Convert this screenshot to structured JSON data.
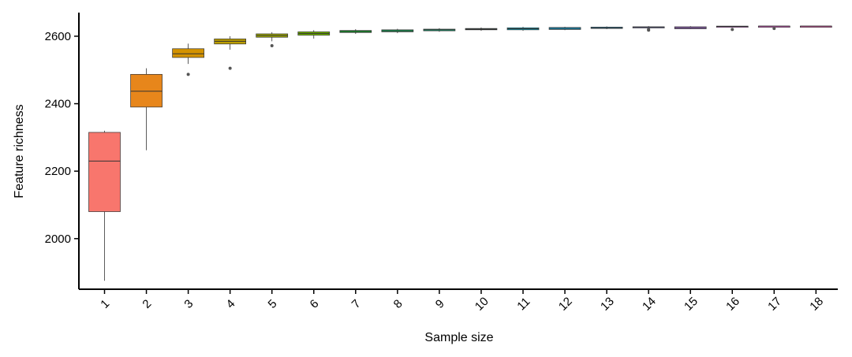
{
  "chart_data": {
    "type": "boxplot",
    "title": "",
    "xlabel": "Sample size",
    "ylabel": "Feature richness",
    "ylim": [
      1850,
      2670
    ],
    "yticks": [
      2000,
      2200,
      2400,
      2600
    ],
    "grid": false,
    "legend": "none",
    "categories": [
      "1",
      "2",
      "3",
      "4",
      "5",
      "6",
      "7",
      "8",
      "9",
      "10",
      "11",
      "12",
      "13",
      "14",
      "15",
      "16",
      "17",
      "18"
    ],
    "boxes": [
      {
        "category": "1",
        "min": 1875,
        "q1": 2080,
        "median": 2230,
        "q3": 2315,
        "max": 2320,
        "outliers": [],
        "color": "#F8766D"
      },
      {
        "category": "2",
        "min": 2262,
        "q1": 2390,
        "median": 2437,
        "q3": 2487,
        "max": 2505,
        "outliers": [],
        "color": "#E7861B"
      },
      {
        "category": "3",
        "min": 2518,
        "q1": 2537,
        "median": 2548,
        "q3": 2563,
        "max": 2578,
        "outliers": [
          2487
        ],
        "color": "#D39200"
      },
      {
        "category": "4",
        "min": 2560,
        "q1": 2577,
        "median": 2585,
        "q3": 2592,
        "max": 2600,
        "outliers": [
          2505
        ],
        "color": "#BB9D00"
      },
      {
        "category": "5",
        "min": 2585,
        "q1": 2597,
        "median": 2602,
        "q3": 2607,
        "max": 2612,
        "outliers": [
          2572
        ],
        "color": "#9DA700"
      },
      {
        "category": "6",
        "min": 2593,
        "q1": 2603,
        "median": 2608,
        "q3": 2613,
        "max": 2618,
        "outliers": [],
        "color": "#6FB000"
      },
      {
        "category": "7",
        "min": 2607,
        "q1": 2611,
        "median": 2614,
        "q3": 2617,
        "max": 2621,
        "outliers": [],
        "color": "#00B81F"
      },
      {
        "category": "8",
        "min": 2609,
        "q1": 2613,
        "median": 2616,
        "q3": 2619,
        "max": 2622,
        "outliers": [],
        "color": "#00BC59"
      },
      {
        "category": "9",
        "min": 2613,
        "q1": 2616,
        "median": 2619,
        "q3": 2621,
        "max": 2624,
        "outliers": [],
        "color": "#00BF85"
      },
      {
        "category": "10",
        "min": 2616,
        "q1": 2619,
        "median": 2621,
        "q3": 2623,
        "max": 2626,
        "outliers": [],
        "color": "#00C0AB"
      },
      {
        "category": "11",
        "min": 2616,
        "q1": 2619,
        "median": 2622,
        "q3": 2625,
        "max": 2628,
        "outliers": [],
        "color": "#00BBDB"
      },
      {
        "category": "12",
        "min": 2618,
        "q1": 2620,
        "median": 2623,
        "q3": 2626,
        "max": 2628,
        "outliers": [],
        "color": "#00B4F0"
      },
      {
        "category": "13",
        "min": 2621,
        "q1": 2623,
        "median": 2625,
        "q3": 2627,
        "max": 2629,
        "outliers": [],
        "color": "#00A8FF"
      },
      {
        "category": "14",
        "min": 2624,
        "q1": 2626,
        "median": 2627,
        "q3": 2628,
        "max": 2630,
        "outliers": [
          2618,
          2620
        ],
        "color": "#8B93FF"
      },
      {
        "category": "15",
        "min": 2621,
        "q1": 2622,
        "median": 2625,
        "q3": 2628,
        "max": 2630,
        "outliers": [],
        "color": "#C77CFF"
      },
      {
        "category": "16",
        "min": 2627,
        "q1": 2628,
        "median": 2629,
        "q3": 2630,
        "max": 2630,
        "outliers": [
          2620
        ],
        "color": "#E76BF3"
      },
      {
        "category": "17",
        "min": 2629,
        "q1": 2629,
        "median": 2630,
        "q3": 2630,
        "max": 2630,
        "outliers": [
          2623
        ],
        "color": "#FA62DB"
      },
      {
        "category": "18",
        "min": 2630,
        "q1": 2630,
        "median": 2630,
        "q3": 2630,
        "max": 2630,
        "outliers": [],
        "color": "#FF62BC"
      }
    ]
  }
}
